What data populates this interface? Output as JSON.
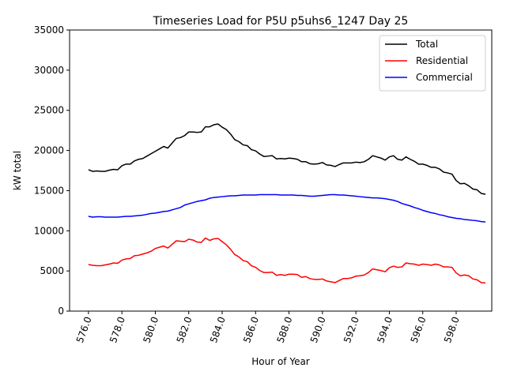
{
  "chart_data": {
    "type": "line",
    "title": "Timeseries Load for P5U p5uhs6_1247  Day 25",
    "xlabel": "Hour of Year",
    "ylabel": "kW total",
    "xlim": [
      574.87,
      600.13
    ],
    "ylim": [
      0,
      35000
    ],
    "x_ticks": [
      576,
      578,
      580,
      582,
      584,
      586,
      588,
      590,
      592,
      594,
      596,
      598
    ],
    "x_tick_labels": [
      "576.0",
      "578.0",
      "580.0",
      "582.0",
      "584.0",
      "586.0",
      "588.0",
      "590.0",
      "592.0",
      "594.0",
      "596.0",
      "598.0"
    ],
    "y_ticks": [
      0,
      5000,
      10000,
      15000,
      20000,
      25000,
      30000,
      35000
    ],
    "y_tick_labels": [
      "0",
      "5000",
      "10000",
      "15000",
      "20000",
      "25000",
      "30000",
      "35000"
    ],
    "legend_position": "top-right",
    "x_start": 576,
    "x_step": 0.25,
    "series": [
      {
        "name": "Total",
        "color": "#000000",
        "values": [
          17600,
          17400,
          17450,
          17400,
          17400,
          17550,
          17650,
          17600,
          18100,
          18300,
          18300,
          18700,
          18900,
          19000,
          19300,
          19600,
          19900,
          20200,
          20500,
          20300,
          20900,
          21500,
          21600,
          21850,
          22300,
          22300,
          22250,
          22300,
          22950,
          22950,
          23200,
          23300,
          22900,
          22600,
          22050,
          21350,
          21100,
          20700,
          20600,
          20100,
          19950,
          19550,
          19250,
          19300,
          19350,
          18950,
          19000,
          18950,
          19050,
          19000,
          18900,
          18600,
          18600,
          18350,
          18300,
          18350,
          18500,
          18200,
          18150,
          18000,
          18250,
          18450,
          18450,
          18450,
          18550,
          18500,
          18600,
          18900,
          19350,
          19200,
          19050,
          18800,
          19200,
          19350,
          18900,
          18800,
          19200,
          18900,
          18650,
          18300,
          18300,
          18150,
          17900,
          17900,
          17700,
          17300,
          17200,
          17050,
          16250,
          15850,
          15900,
          15600,
          15200,
          15100,
          14650,
          14550
        ]
      },
      {
        "name": "Residential",
        "color": "#ff0000",
        "values": [
          5800,
          5700,
          5650,
          5650,
          5750,
          5850,
          6000,
          5950,
          6350,
          6500,
          6550,
          6900,
          6950,
          7100,
          7250,
          7450,
          7800,
          7950,
          8100,
          7850,
          8300,
          8750,
          8700,
          8650,
          8950,
          8850,
          8600,
          8550,
          9100,
          8800,
          9000,
          9050,
          8650,
          8250,
          7700,
          7050,
          6750,
          6300,
          6150,
          5650,
          5450,
          5050,
          4800,
          4800,
          4850,
          4450,
          4550,
          4450,
          4600,
          4600,
          4550,
          4200,
          4300,
          4050,
          3950,
          3950,
          4000,
          3750,
          3650,
          3550,
          3800,
          4050,
          4050,
          4150,
          4350,
          4400,
          4500,
          4800,
          5250,
          5150,
          5050,
          4900,
          5400,
          5600,
          5450,
          5500,
          6000,
          5900,
          5850,
          5700,
          5850,
          5800,
          5700,
          5850,
          5750,
          5500,
          5500,
          5450,
          4750,
          4400,
          4500,
          4400,
          4000,
          3900,
          3550,
          3500
        ]
      },
      {
        "name": "Commercial",
        "color": "#0000ff",
        "values": [
          11800,
          11700,
          11750,
          11750,
          11700,
          11700,
          11700,
          11700,
          11750,
          11800,
          11800,
          11850,
          11900,
          11950,
          12050,
          12150,
          12200,
          12300,
          12400,
          12450,
          12600,
          12750,
          12900,
          13200,
          13350,
          13500,
          13650,
          13750,
          13850,
          14050,
          14150,
          14200,
          14250,
          14300,
          14350,
          14350,
          14400,
          14450,
          14450,
          14450,
          14450,
          14500,
          14500,
          14500,
          14500,
          14500,
          14450,
          14450,
          14450,
          14450,
          14400,
          14400,
          14350,
          14300,
          14300,
          14350,
          14400,
          14450,
          14500,
          14500,
          14450,
          14450,
          14400,
          14350,
          14300,
          14250,
          14200,
          14150,
          14100,
          14100,
          14050,
          14000,
          13900,
          13800,
          13650,
          13400,
          13250,
          13100,
          12900,
          12750,
          12550,
          12400,
          12250,
          12150,
          12000,
          11900,
          11750,
          11650,
          11550,
          11500,
          11400,
          11350,
          11300,
          11250,
          11150,
          11100
        ]
      }
    ]
  }
}
